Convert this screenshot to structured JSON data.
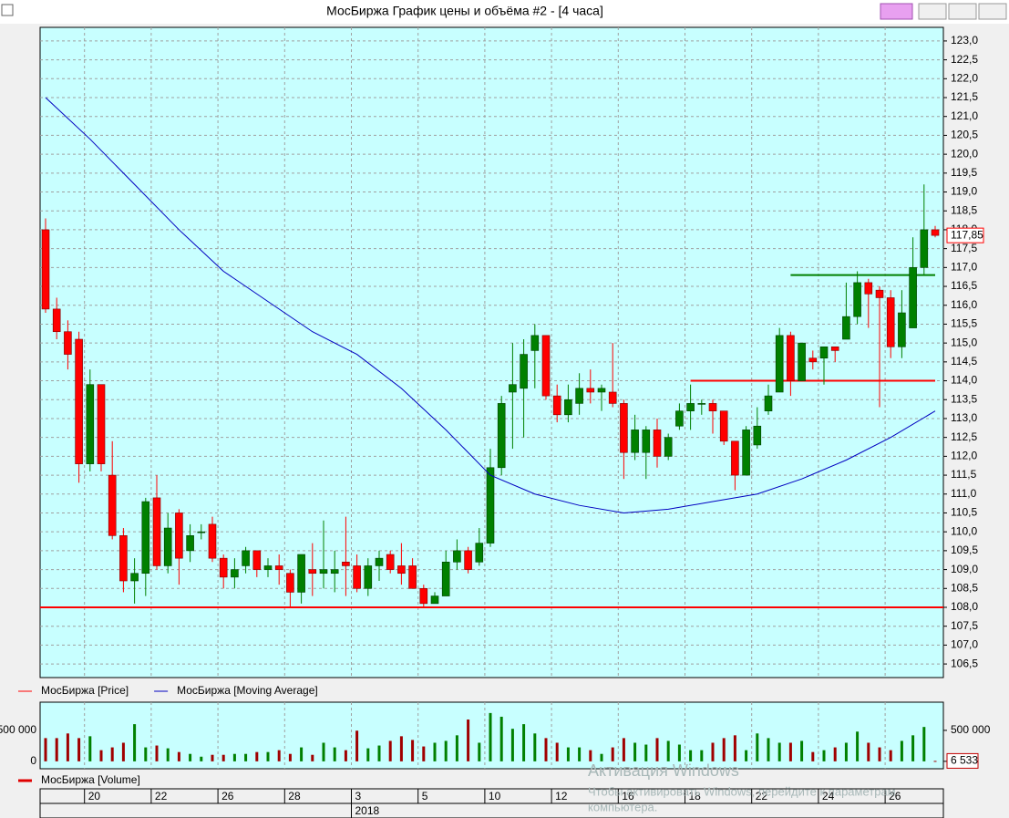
{
  "window": {
    "title": "МосБиржа График цены и объёма #2 - [4 часа]"
  },
  "watermark": {
    "line1": "Активация Windows",
    "line2": "Чтобы активировать Windows, перейдите к параметрам",
    "line3": "компьютера."
  },
  "chart_data": [
    {
      "type": "candlestick",
      "grid": true,
      "ylim": [
        106.14,
        123.36
      ],
      "yticks": [
        {
          "value": 106.5,
          "label": "106,5"
        },
        {
          "value": 107,
          "label": "107,0"
        },
        {
          "value": 107.5,
          "label": "107,5"
        },
        {
          "value": 108,
          "label": "108,0"
        },
        {
          "value": 108.5,
          "label": "108,5"
        },
        {
          "value": 109,
          "label": "109,0"
        },
        {
          "value": 109.5,
          "label": "109,5"
        },
        {
          "value": 110,
          "label": "110,0"
        },
        {
          "value": 110.5,
          "label": "110,5"
        },
        {
          "value": 111,
          "label": "111,0"
        },
        {
          "value": 111.5,
          "label": "111,5"
        },
        {
          "value": 112,
          "label": "112,0"
        },
        {
          "value": 112.5,
          "label": "112,5"
        },
        {
          "value": 113,
          "label": "113,0"
        },
        {
          "value": 113.5,
          "label": "113,5"
        },
        {
          "value": 114,
          "label": "114,0"
        },
        {
          "value": 114.5,
          "label": "114,5"
        },
        {
          "value": 115,
          "label": "115,0"
        },
        {
          "value": 115.5,
          "label": "115,5"
        },
        {
          "value": 116,
          "label": "116,0"
        },
        {
          "value": 116.5,
          "label": "116,5"
        },
        {
          "value": 117,
          "label": "117,0"
        },
        {
          "value": 117.5,
          "label": "117,5"
        },
        {
          "value": 118,
          "label": "118,0"
        },
        {
          "value": 118.5,
          "label": "118,5"
        },
        {
          "value": 119,
          "label": "119,0"
        },
        {
          "value": 119.5,
          "label": "119,5"
        },
        {
          "value": 120,
          "label": "120,0"
        },
        {
          "value": 120.5,
          "label": "120,5"
        },
        {
          "value": 121,
          "label": "121,0"
        },
        {
          "value": 121.5,
          "label": "121,5"
        },
        {
          "value": 122,
          "label": "122,0"
        },
        {
          "value": 122.5,
          "label": "122,5"
        },
        {
          "value": 123,
          "label": "123,0"
        }
      ],
      "xticks": [
        {
          "value": 3,
          "label": "20"
        },
        {
          "value": 9,
          "label": "22"
        },
        {
          "value": 15,
          "label": "26"
        },
        {
          "value": 21,
          "label": "28"
        },
        {
          "value": 27,
          "label": "3"
        },
        {
          "value": 33,
          "label": "5"
        },
        {
          "value": 39,
          "label": "10"
        },
        {
          "value": 45,
          "label": "12"
        },
        {
          "value": 51,
          "label": "16"
        },
        {
          "value": 57,
          "label": "18"
        },
        {
          "value": 63,
          "label": "22"
        },
        {
          "value": 69,
          "label": "24"
        },
        {
          "value": 75,
          "label": "26"
        }
      ],
      "xticks2": [
        {
          "value": 27,
          "label": "2018"
        }
      ],
      "series": [
        {
          "name": "МосБиржа [Price]",
          "color": "#ff0000",
          "up_color": "#008000",
          "open": [
            118.0,
            115.9,
            115.3,
            115.1,
            111.8,
            113.9,
            111.5,
            109.9,
            108.7,
            108.9,
            110.9,
            109.1,
            110.5,
            109.5,
            110.0,
            110.2,
            109.3,
            108.8,
            109.1,
            109.5,
            109.0,
            109.1,
            108.9,
            108.4,
            109.0,
            108.9,
            108.9,
            109.2,
            109.1,
            108.5,
            109.1,
            109.4,
            109.1,
            109.1,
            108.5,
            108.1,
            108.3,
            109.2,
            109.5,
            109.2,
            109.7,
            111.7,
            113.7,
            113.8,
            114.8,
            115.2,
            113.6,
            113.1,
            113.4,
            113.8,
            113.7,
            113.7,
            113.4,
            112.1,
            112.1,
            112.7,
            112.0,
            112.8,
            113.2,
            113.4,
            113.4,
            113.2,
            112.4,
            111.5,
            112.3,
            113.2,
            113.7,
            115.2,
            114.0,
            114.6,
            114.6,
            114.9,
            115.1,
            115.7,
            116.6,
            116.4,
            116.2,
            114.9,
            115.4,
            117.0,
            118.0
          ],
          "high": [
            118.3,
            116.2,
            115.6,
            115.3,
            114.3,
            113.9,
            112.4,
            110.1,
            109.3,
            110.9,
            111.5,
            110.5,
            110.6,
            110.2,
            110.2,
            110.4,
            109.4,
            109.3,
            109.6,
            109.5,
            109.3,
            109.4,
            109.0,
            109.4,
            109.7,
            110.3,
            109.5,
            110.4,
            109.4,
            109.3,
            109.5,
            109.5,
            109.7,
            109.3,
            108.6,
            108.4,
            109.5,
            109.8,
            109.6,
            110.1,
            112.2,
            113.6,
            115.0,
            115.1,
            115.5,
            115.2,
            113.9,
            113.9,
            114.2,
            114.3,
            113.9,
            115.0,
            113.5,
            113.1,
            112.8,
            113.0,
            112.6,
            113.4,
            113.9,
            113.5,
            113.5,
            113.2,
            112.4,
            112.8,
            113.3,
            113.9,
            115.4,
            115.3,
            115.0,
            114.8,
            114.9,
            114.9,
            116.6,
            116.9,
            116.7,
            116.5,
            116.4,
            116.4,
            117.8,
            119.2,
            118.1
          ],
          "low": [
            115.8,
            115.1,
            114.3,
            111.3,
            111.6,
            111.6,
            109.8,
            108.4,
            108.1,
            108.3,
            109.0,
            108.9,
            108.6,
            109.2,
            109.8,
            109.2,
            108.5,
            108.5,
            108.9,
            108.8,
            108.8,
            108.6,
            108.0,
            108.1,
            108.3,
            108.5,
            108.4,
            108.3,
            108.4,
            108.3,
            108.7,
            108.9,
            108.6,
            108.5,
            108.0,
            108.1,
            108.3,
            109.0,
            108.9,
            109.1,
            109.6,
            111.5,
            112.2,
            112.5,
            113.8,
            113.5,
            112.9,
            112.9,
            113.1,
            113.4,
            113.2,
            113.3,
            111.4,
            111.9,
            111.4,
            111.7,
            111.9,
            112.7,
            112.7,
            113.1,
            112.6,
            112.3,
            111.1,
            111.5,
            112.2,
            113.1,
            113.7,
            113.6,
            114.0,
            114.3,
            113.9,
            114.5,
            115.1,
            115.5,
            115.4,
            113.3,
            114.6,
            114.6,
            115.4,
            116.8,
            117.8
          ],
          "close": [
            115.9,
            115.3,
            114.7,
            111.8,
            113.9,
            111.8,
            109.9,
            108.7,
            108.9,
            110.8,
            109.1,
            110.1,
            109.3,
            109.9,
            110.0,
            109.3,
            108.8,
            109.0,
            109.5,
            109.0,
            109.1,
            109.0,
            108.4,
            109.4,
            108.9,
            109.0,
            109.0,
            109.1,
            108.5,
            109.1,
            109.3,
            109.0,
            108.9,
            108.5,
            108.1,
            108.3,
            109.2,
            109.5,
            109.0,
            109.7,
            111.7,
            113.4,
            113.9,
            114.7,
            115.2,
            113.6,
            113.1,
            113.5,
            113.8,
            113.7,
            113.8,
            113.4,
            112.1,
            112.7,
            112.7,
            112.0,
            112.5,
            113.2,
            113.4,
            113.4,
            113.2,
            112.4,
            111.5,
            112.7,
            112.8,
            113.6,
            115.2,
            114.0,
            115.0,
            114.5,
            114.9,
            114.8,
            115.7,
            116.6,
            116.3,
            116.2,
            114.9,
            115.8,
            117.0,
            118.0,
            117.85
          ],
          "last_label": "117,85"
        },
        {
          "name": "МосБиржа [Moving Average]",
          "type": "line",
          "color": "#0000c0",
          "x": [
            0,
            4,
            8,
            12,
            16,
            20,
            24,
            28,
            32,
            36,
            40,
            44,
            48,
            52,
            56,
            60,
            64,
            68,
            72,
            76,
            80
          ],
          "values": [
            121.5,
            120.4,
            119.2,
            118.0,
            116.9,
            116.1,
            115.3,
            114.7,
            113.8,
            112.7,
            111.5,
            111.0,
            110.7,
            110.5,
            110.6,
            110.8,
            111.0,
            111.4,
            111.9,
            112.5,
            113.2
          ]
        }
      ],
      "levels": [
        {
          "value": 108.0,
          "color": "#ff0000"
        },
        {
          "value": 114.0,
          "color": "#ff0000",
          "start": 58
        },
        {
          "value": 116.8,
          "color": "#008000",
          "start": 67
        }
      ]
    },
    {
      "type": "bar",
      "ylim": [
        -120000,
        955000
      ],
      "yticks": [
        0,
        {
          "value": 500000,
          "label": "500 000"
        }
      ],
      "series": [
        {
          "name": "МосБиржа [Volume]",
          "color": "#a00000",
          "up_color": "#008000",
          "values": [
            375000,
            375000,
            450000,
            375000,
            405000,
            180000,
            225000,
            300000,
            600000,
            225000,
            255000,
            210000,
            150000,
            120000,
            75000,
            105000,
            105000,
            120000,
            120000,
            150000,
            150000,
            180000,
            120000,
            225000,
            105000,
            300000,
            225000,
            180000,
            495000,
            210000,
            255000,
            330000,
            405000,
            345000,
            240000,
            300000,
            330000,
            420000,
            675000,
            300000,
            780000,
            720000,
            525000,
            600000,
            450000,
            375000,
            300000,
            225000,
            225000,
            180000,
            120000,
            225000,
            375000,
            300000,
            270000,
            375000,
            330000,
            270000,
            180000,
            180000,
            300000,
            375000,
            420000,
            180000,
            450000,
            375000,
            300000,
            300000,
            330000,
            150000,
            180000,
            225000,
            300000,
            480000,
            300000,
            225000,
            180000,
            330000,
            420000,
            555000,
            6533
          ],
          "last_label": "6 533"
        }
      ]
    }
  ]
}
